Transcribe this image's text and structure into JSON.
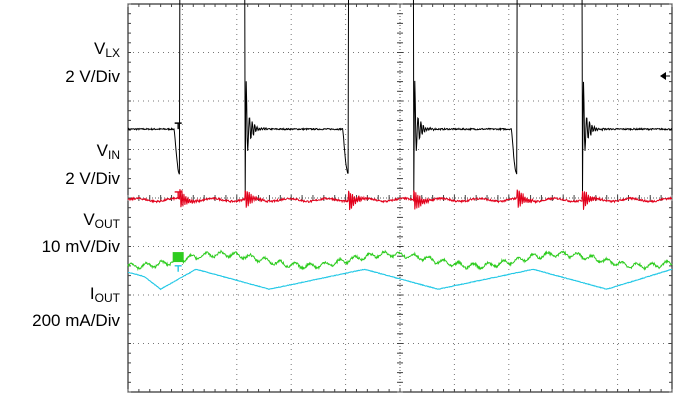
{
  "chart_data": {
    "type": "line",
    "title": "",
    "x_divisions": 10,
    "y_divisions": 8,
    "grid": "dotted",
    "channels": [
      {
        "label_main": "V",
        "label_sub": "LX",
        "scale": "2 V/Div",
        "color": "#000000"
      },
      {
        "label_main": "V",
        "label_sub": "IN",
        "scale": "2 V/Div",
        "color": "#e3001b"
      },
      {
        "label_main": "V",
        "label_sub": "OUT",
        "scale": "10 mV/Div",
        "color": "#2ecc1f"
      },
      {
        "label_main": "I",
        "label_sub": "OUT",
        "scale": "200 mA/Div",
        "color": "#23c8e6"
      }
    ],
    "series": [
      {
        "channel": 0,
        "units": "div",
        "pwm": {
          "period_div": 3.1,
          "rise_div": [
            0.95,
            4.05,
            7.15
          ],
          "high_div": 1.2,
          "low_level_div": 1.42,
          "high_level_div": 4.78,
          "pre_rise_dip_div": 0.5,
          "post_fall_spike_div": -0.45
        }
      },
      {
        "channel": 1,
        "units": "div",
        "level_div": -0.04,
        "noise_bursts_at_edges": true
      },
      {
        "channel": 2,
        "units": "div",
        "ripple": {
          "offset_div": -1.28,
          "amplitude_div": 0.12
        }
      },
      {
        "channel": 3,
        "units": "div",
        "triangle": {
          "low_div": -1.88,
          "high_div": -1.48,
          "peak_div": [
            2.6,
            5.7,
            8.8
          ],
          "valley_div": [
            1.25,
            4.35,
            7.45
          ]
        }
      }
    ]
  }
}
